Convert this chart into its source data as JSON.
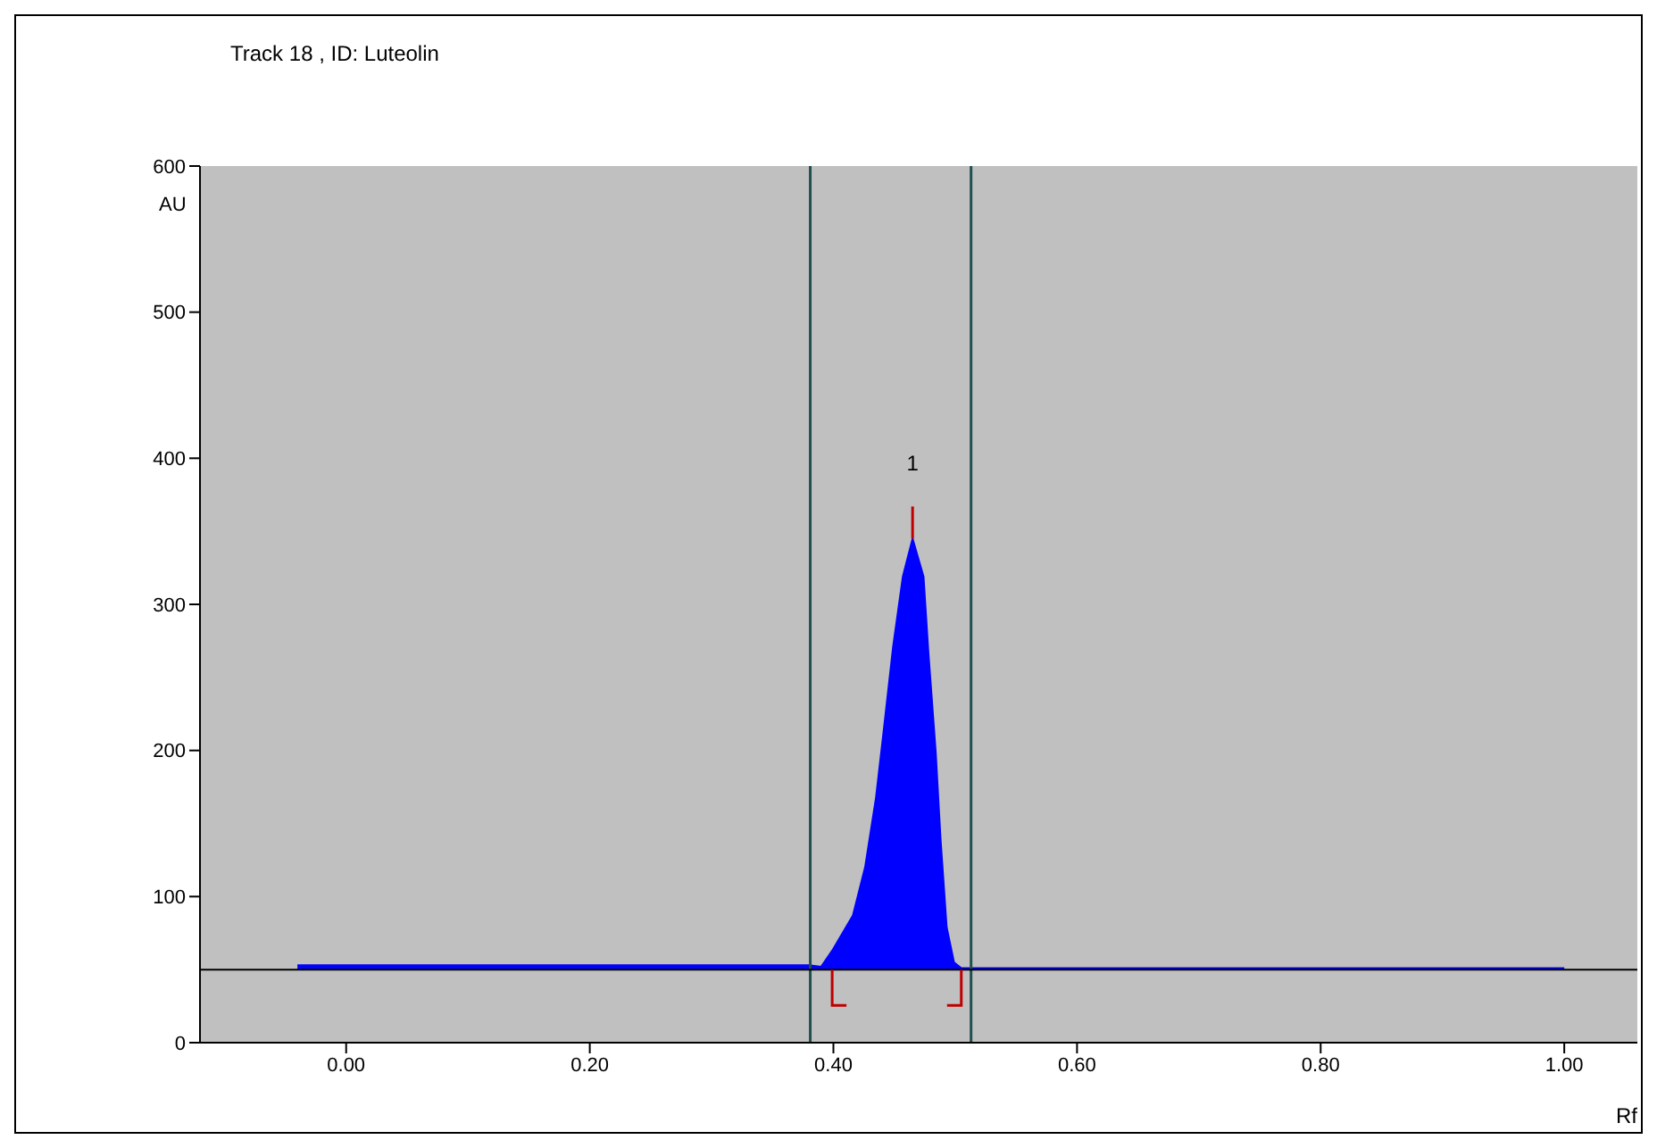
{
  "chart_data": {
    "type": "area",
    "title": "Track  18 , ID: Luteolin",
    "xlabel": "Rf",
    "ylabel": "AU",
    "series": [
      {
        "color": "#0000ff",
        "x": [
          -0.04,
          0.0,
          0.1,
          0.2,
          0.3,
          0.38,
          0.39,
          0.399,
          0.416,
          0.426,
          0.435,
          0.442,
          0.449,
          0.457,
          0.465,
          0.474,
          0.478,
          0.484,
          0.488,
          0.493,
          0.499,
          0.505,
          0.52,
          0.6,
          0.7,
          0.8,
          0.9,
          1.0
        ],
        "values": [
          53,
          53,
          53,
          53,
          53,
          53,
          52,
          63,
          87,
          120,
          168,
          219,
          271,
          319,
          345,
          319,
          267,
          199,
          139,
          79,
          55,
          51,
          51,
          51,
          51,
          51,
          51,
          51
        ]
      }
    ],
    "annotations": [
      {
        "text": "1",
        "x": 0.465,
        "y": 345
      }
    ],
    "ref_lines": [
      {
        "axis": "x",
        "value": 0.381,
        "color": "#1f4f4f"
      },
      {
        "axis": "x",
        "value": 0.513,
        "color": "#1f4f4f"
      },
      {
        "axis": "y",
        "value": 50,
        "color": "#000000"
      }
    ],
    "xlim": [
      -0.12,
      1.06
    ],
    "xticks": [
      {
        "value": 0,
        "label": "0.00"
      },
      {
        "value": 0.2,
        "label": "0.20"
      },
      {
        "value": 0.4,
        "label": "0.40"
      },
      {
        "value": 0.6,
        "label": "0.60"
      },
      {
        "value": 0.8,
        "label": "0.80"
      },
      {
        "value": 1,
        "label": "1.00"
      }
    ],
    "ylim": [
      0,
      600
    ],
    "yticks": [
      0,
      100,
      200,
      300,
      400,
      500,
      600
    ]
  }
}
